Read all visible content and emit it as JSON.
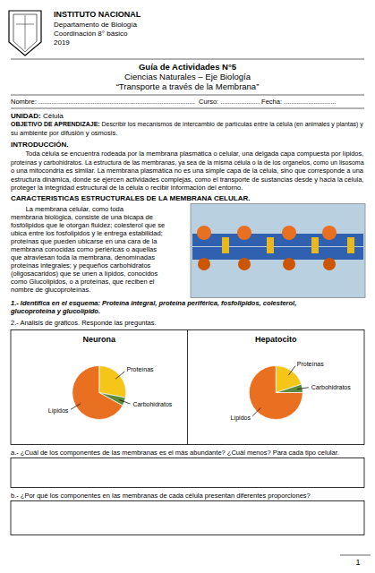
{
  "chart_data": [
    {
      "type": "pie",
      "title": "Neurona",
      "categories": [
        "Proteínas",
        "Carbohidratos",
        "Lípidos"
      ],
      "values": [
        28,
        5,
        67
      ],
      "colors": [
        "#F5C518",
        "#5A8A3C",
        "#E87020"
      ]
    },
    {
      "type": "pie",
      "title": "Hepatocito",
      "categories": [
        "Proteínas",
        "Carbohidratos",
        "Lípidos"
      ],
      "values": [
        20,
        5,
        75
      ],
      "colors": [
        "#F5C518",
        "#5A8A3C",
        "#E87020"
      ]
    }
  ],
  "page_text": {
    "header_name": "INSTITUTO NACIONAL",
    "header_dept": "Departamento de Biología",
    "header_coord": "Coordinación 8° básico",
    "header_year": "2019",
    "title_line1": "Guía de Actividades N°5",
    "title_line2": "Ciencias Naturales – Eje Biología",
    "title_line3": "“Transporte a través de la Membrana”",
    "nombre_line": "Nombre: ....................................................................................  Curso: ..................... Fecha: ............................",
    "unidad_bold": "UNIDAD: ",
    "unidad_regular": "Célula",
    "objetivo_bold": "OBJETIVO DE APRENDIZAJE: ",
    "objetivo_regular": "Describir los mecanismos de intercambio de partículas entre la célula (en animales y plantas) y",
    "objetivo2": "su ambiente por difusión y osmosis.",
    "intro_title": "INTRODUCCIÓN.",
    "intro_text_lines": [
      "        Toda célula se encuentra rodeada por la membrana plasmática o celular, una delgada capa compuesta por lípidos,",
      "proteínas y carbohidratos. La estructura de las membranas, ya sea de la misma célula o la de los organelos, como un lisosoma",
      "o una mitocondria es similar. La membrana plasmática no es una simple capa de la célula, sino que corresponde a una",
      "estructura dinámica, donde se ejercen actividades complejas, como el transporte de sustancias desde y hacia la célula,",
      "proteger la integridad estructural de la célula o recibir información del entorno."
    ],
    "caract_title": "CARACTERISTICAS ESTRUCTURALES DE LA MEMBRANA CELULAR.",
    "caract_text_lines": [
      "        La membrana celular, como toda",
      "membrana biológica, consiste de una bicapa de",
      "fosfólipidos que le otorgan fluidez; colesterol que se",
      "ubica entre los fosfolipidos y le entrega estabilidad;",
      "proteínas que pueden ubicarse en una cara de la",
      "membrana conocidas como periéricas o aquellas",
      "que atraviesan toda la membrana, denominadas",
      "proteínas integrales; y pequeños carbohidratos",
      "(oligosacaridos) que se unen a lípidos, conocidos",
      "como Glucolipidos, o a proteínas, que reciben el",
      "nombre de glucoproteínas."
    ],
    "question1_lines": [
      "1.- Identifica en el esquema: Proteína integral, proteína periférica, fosfolipidos, colesterol,",
      "glucoproteína y glucolípido."
    ],
    "question2": "2.- Análisis de gráficos. Responde las preguntas.",
    "qa_title": "a.- ¿Cuál de los componentes de las membranas es el más abundante? ¿Cuál menos? Para cada tipo celular.",
    "qb_title": "b.- ¿Por qué los componentes en las membranas de cada célula presentan diferentes proporciones?",
    "page_number": "1"
  }
}
